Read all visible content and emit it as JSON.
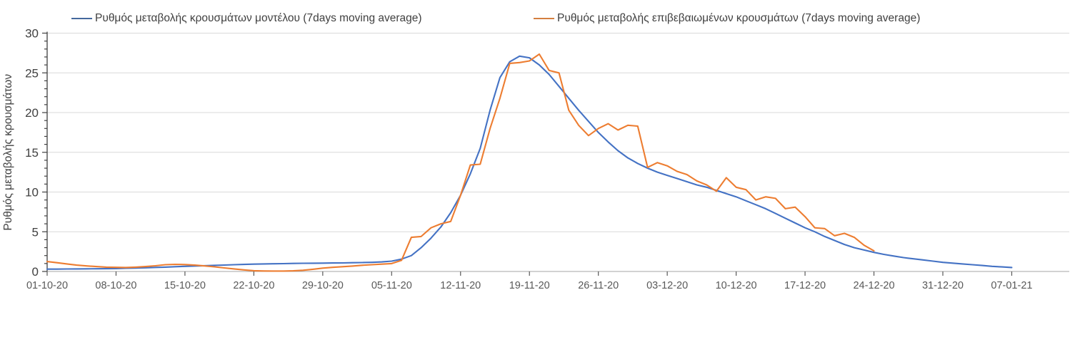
{
  "legend": {
    "items": [
      {
        "label": "Ρυθμός μεταβολής κρουσμάτων μοντέλου (7days moving average)",
        "color": "#44689d"
      },
      {
        "label": "Ρυθμός μεταβολής επιβεβαιωμένων κρουσμάτων (7days moving average)",
        "color": "#d47f3f"
      }
    ]
  },
  "chart_data": {
    "type": "line",
    "title": "",
    "xlabel": "",
    "ylabel": "Ρυθμός μεταβολής κρουσμάτων",
    "ylim": [
      0,
      30
    ],
    "y_major_ticks": [
      0,
      5,
      10,
      15,
      20,
      25,
      30
    ],
    "y_minor_step": 1,
    "grid": "horizontal-major-only",
    "legend_position": "top",
    "x_total_days": 98,
    "x_tick_labels": [
      "01-10-20",
      "08-10-20",
      "15-10-20",
      "22-10-20",
      "29-10-20",
      "05-11-20",
      "12-11-20",
      "19-11-20",
      "26-11-20",
      "03-12-20",
      "10-12-20",
      "17-12-20",
      "24-12-20",
      "31-12-20",
      "07-01-21"
    ],
    "x_tick_day_indices": [
      0,
      7,
      14,
      21,
      28,
      35,
      42,
      49,
      56,
      63,
      70,
      77,
      84,
      91,
      98
    ],
    "series": [
      {
        "name": "Ρυθμός μεταβολής κρουσμάτων μοντέλου (7days moving average)",
        "color": "#4472c4",
        "start_day": 0,
        "values": [
          0.3,
          0.3,
          0.31,
          0.32,
          0.33,
          0.34,
          0.35,
          0.37,
          0.4,
          0.43,
          0.47,
          0.51,
          0.55,
          0.6,
          0.65,
          0.69,
          0.73,
          0.77,
          0.81,
          0.85,
          0.89,
          0.92,
          0.95,
          0.97,
          0.99,
          1.01,
          1.03,
          1.04,
          1.05,
          1.07,
          1.08,
          1.1,
          1.12,
          1.15,
          1.2,
          1.3,
          1.55,
          2.0,
          3.0,
          4.2,
          5.6,
          7.4,
          9.6,
          12.3,
          15.5,
          20.3,
          24.4,
          26.4,
          27.1,
          26.9,
          26.0,
          24.8,
          23.3,
          21.8,
          20.3,
          18.9,
          17.5,
          16.3,
          15.2,
          14.3,
          13.6,
          13.0,
          12.5,
          12.1,
          11.7,
          11.3,
          10.9,
          10.6,
          10.2,
          9.8,
          9.4,
          8.9,
          8.4,
          7.9,
          7.3,
          6.7,
          6.1,
          5.5,
          5.0,
          4.4,
          3.9,
          3.4,
          3.0,
          2.7,
          2.4,
          2.15,
          1.95,
          1.75,
          1.6,
          1.45,
          1.3,
          1.15,
          1.05,
          0.95,
          0.85,
          0.75,
          0.65,
          0.57,
          0.5
        ]
      },
      {
        "name": "Ρυθμός μεταβολής επιβεβαιωμένων κρουσμάτων (7days moving average)",
        "color": "#ed7d31",
        "start_day": 0,
        "values": [
          1.25,
          1.1,
          0.95,
          0.8,
          0.7,
          0.62,
          0.55,
          0.52,
          0.5,
          0.55,
          0.62,
          0.72,
          0.85,
          0.9,
          0.87,
          0.8,
          0.7,
          0.58,
          0.45,
          0.32,
          0.2,
          0.1,
          0.06,
          0.05,
          0.05,
          0.08,
          0.15,
          0.28,
          0.42,
          0.52,
          0.6,
          0.68,
          0.78,
          0.85,
          0.92,
          1.0,
          1.4,
          4.3,
          4.4,
          5.5,
          6.0,
          6.3,
          9.6,
          13.4,
          13.5,
          18.0,
          21.8,
          26.2,
          26.3,
          26.5,
          27.35,
          25.3,
          25.0,
          20.3,
          18.4,
          17.1,
          18.0,
          18.6,
          17.8,
          18.4,
          18.3,
          13.1,
          13.7,
          13.3,
          12.6,
          12.2,
          11.4,
          10.9,
          10.1,
          11.8,
          10.6,
          10.3,
          9.0,
          9.4,
          9.2,
          7.9,
          8.1,
          6.9,
          5.5,
          5.4,
          4.5,
          4.8,
          4.3,
          3.3,
          2.6
        ]
      }
    ]
  },
  "style": {
    "gridline_color": "#d9d9d9",
    "y_axis_color": "#404040",
    "x_axis_color": "#a6a6a6",
    "tick_color": "#595959",
    "label_color": "#404040",
    "x_label_color": "#595959"
  }
}
